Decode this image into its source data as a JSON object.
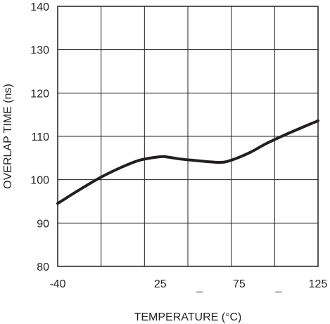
{
  "chart_data": {
    "type": "line",
    "xlabel": "TEMPERATURE (°C)",
    "ylabel": "OVERLAP TIME (ns)",
    "xlim": [
      -40,
      125
    ],
    "ylim": [
      80,
      140
    ],
    "x_ticks": [
      -40,
      25,
      75,
      125
    ],
    "x_tick_labels": [
      "-40",
      "25",
      "75",
      "125"
    ],
    "x_extra_marks": [
      "_",
      "_"
    ],
    "y_ticks": [
      80,
      90,
      100,
      110,
      120,
      130,
      140
    ],
    "y_tick_labels": [
      "80",
      "90",
      "100",
      "110",
      "120",
      "130",
      "140"
    ],
    "grid": true,
    "series": [
      {
        "x": [
          -40,
          -27,
          -13,
          0,
          12,
          25,
          30,
          37,
          45,
          62,
          70,
          82,
          92,
          105,
          125
        ],
        "y": [
          94.5,
          97.5,
          100.5,
          102.8,
          104.5,
          105.3,
          105.2,
          104.8,
          104.5,
          104.0,
          104.5,
          106.3,
          108.3,
          110.5,
          113.6
        ]
      }
    ]
  }
}
